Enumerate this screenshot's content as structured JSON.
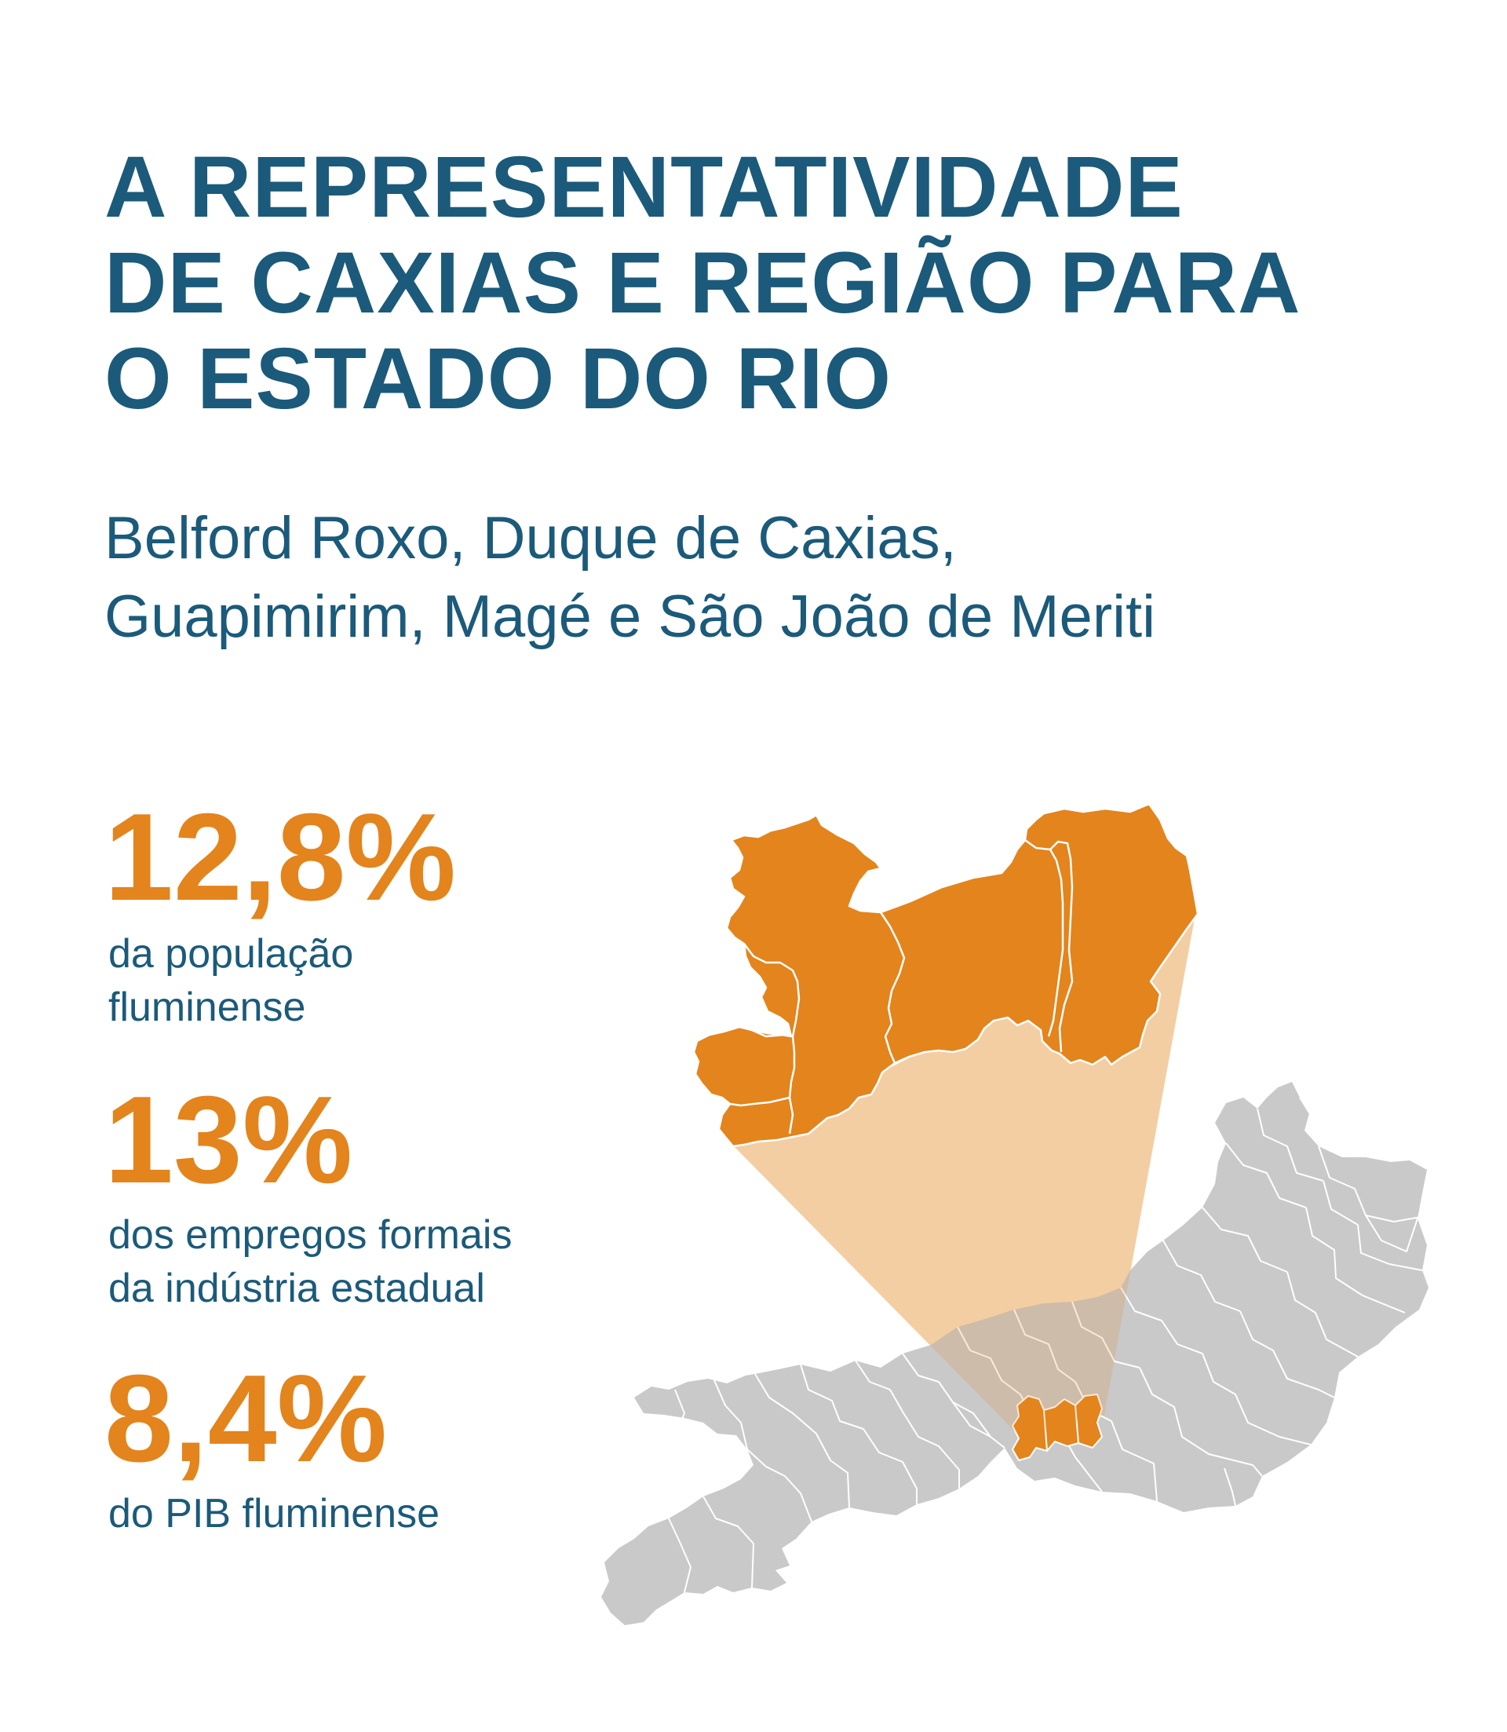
{
  "title": {
    "line1": "A REPRESENTATIVIDADE",
    "line2": "DE CAXIAS E REGIÃO PARA",
    "line3": "O ESTADO DO RIO"
  },
  "subtitle": {
    "line1": "Belford Roxo, Duque de Caxias,",
    "line2": "Guapimirim, Magé e São João de Meriti"
  },
  "stats": [
    {
      "value": "12,8%",
      "label_line1": "da população",
      "label_line2": "fluminense"
    },
    {
      "value": "13%",
      "label_line1": "dos empregos formais",
      "label_line2": "da indústria estadual"
    },
    {
      "value": "8,4%",
      "label_line1": "do PIB fluminense",
      "label_line2": ""
    }
  ],
  "map": {
    "state": "Rio de Janeiro",
    "highlighted_municipalities": [
      "Belford Roxo",
      "Duque de Caxias",
      "Guapimirim",
      "Magé",
      "São João de Meriti"
    ]
  },
  "colors": {
    "title_blue": "#1b5a7a",
    "accent_orange": "#e3841d",
    "state_gray": "#c9c9c9",
    "zoom_cone": "#f7dfc1",
    "border_white": "#ffffff"
  }
}
